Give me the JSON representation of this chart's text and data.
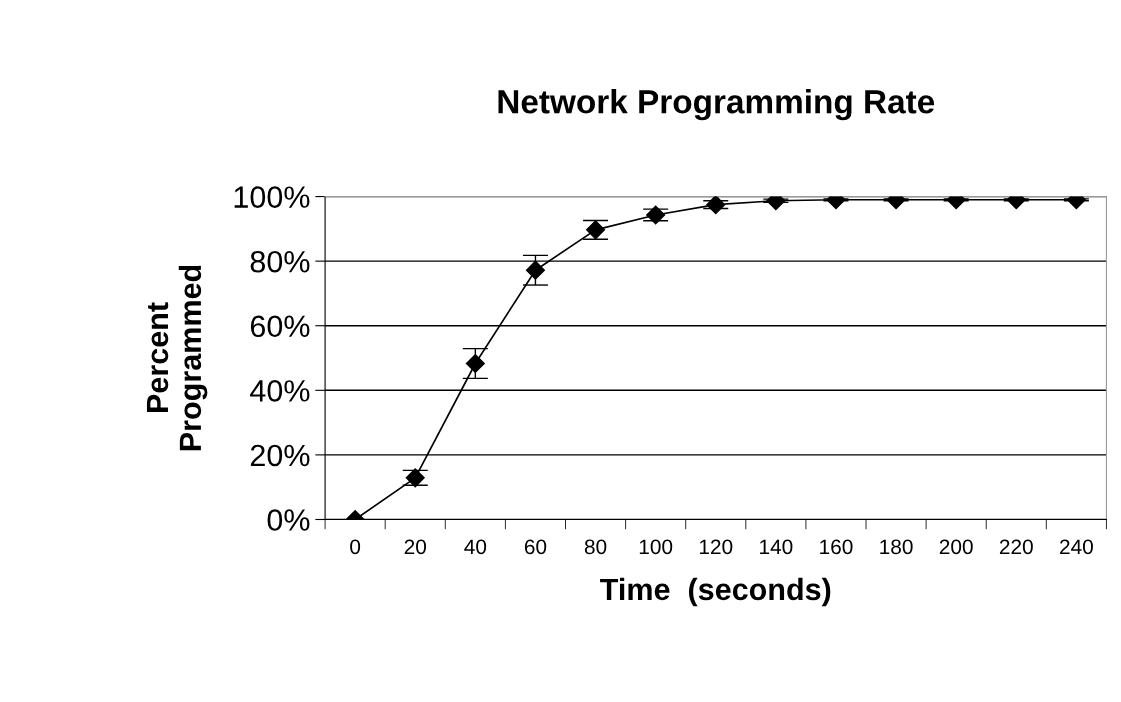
{
  "chart_data": {
    "type": "line",
    "title": "Network Programming Rate",
    "xlabel": "Time  (seconds)",
    "ylabel": "Percent\nProgrammed",
    "categories": [
      "0",
      "20",
      "40",
      "60",
      "80",
      "100",
      "120",
      "140",
      "160",
      "180",
      "200",
      "220",
      "240"
    ],
    "series": [
      {
        "color": "#000000",
        "values": [
          0,
          12.9,
          48.3,
          77.2,
          89.7,
          94.3,
          97.5,
          98.7,
          99,
          99,
          99,
          99,
          99
        ],
        "errors": [
          null,
          2.3,
          4.6,
          4.6,
          2.9,
          1.8,
          1.2,
          0.5,
          0.3,
          0.3,
          0.3,
          0.3,
          0.3
        ]
      }
    ],
    "ylim": [
      0,
      100
    ],
    "yticks": [
      {
        "value": 0,
        "label": "0%"
      },
      {
        "value": 20,
        "label": "20%"
      },
      {
        "value": 40,
        "label": "40%"
      },
      {
        "value": 60,
        "label": "60%"
      },
      {
        "value": 80,
        "label": "80%"
      },
      {
        "value": 100,
        "label": "100%"
      }
    ],
    "grid": "y",
    "marker": "diamond",
    "line_style": "solid"
  }
}
